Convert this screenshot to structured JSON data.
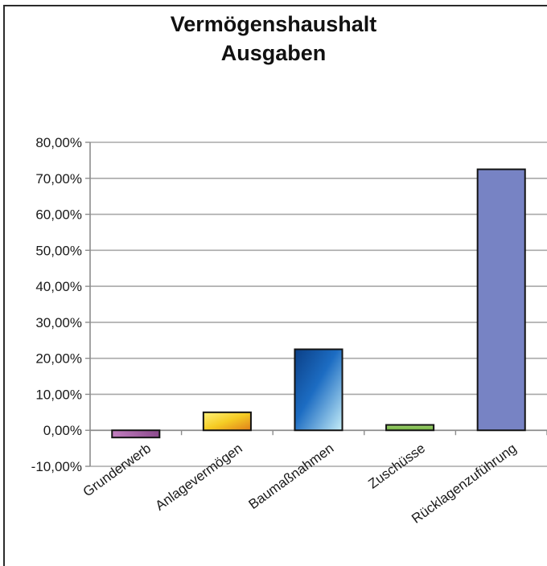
{
  "chart_data": {
    "type": "bar",
    "title": "Vermögenshaushalt",
    "subtitle": "Ausgaben",
    "xlabel": "",
    "ylabel": "",
    "categories": [
      "Grunderwerb",
      "Anlagevermögen",
      "Baumaßnahmen",
      "Zuschüsse",
      "Rücklagenzuführung"
    ],
    "values": [
      -2.0,
      5.0,
      22.5,
      1.5,
      72.5
    ],
    "ylim": [
      -10,
      80
    ],
    "yticks": [
      80,
      70,
      60,
      50,
      40,
      30,
      20,
      10,
      0,
      -10
    ],
    "ytick_labels": [
      "80,00%",
      "70,00%",
      "60,00%",
      "50,00%",
      "40,00%",
      "30,00%",
      "20,00%",
      "10,00%",
      "0,00%",
      "-10,00%"
    ],
    "grid": true,
    "legend": "none",
    "colors": [
      "#a964a8",
      "#f0c020",
      "#1458a6",
      "#8ec85a",
      "#7783c4"
    ]
  }
}
